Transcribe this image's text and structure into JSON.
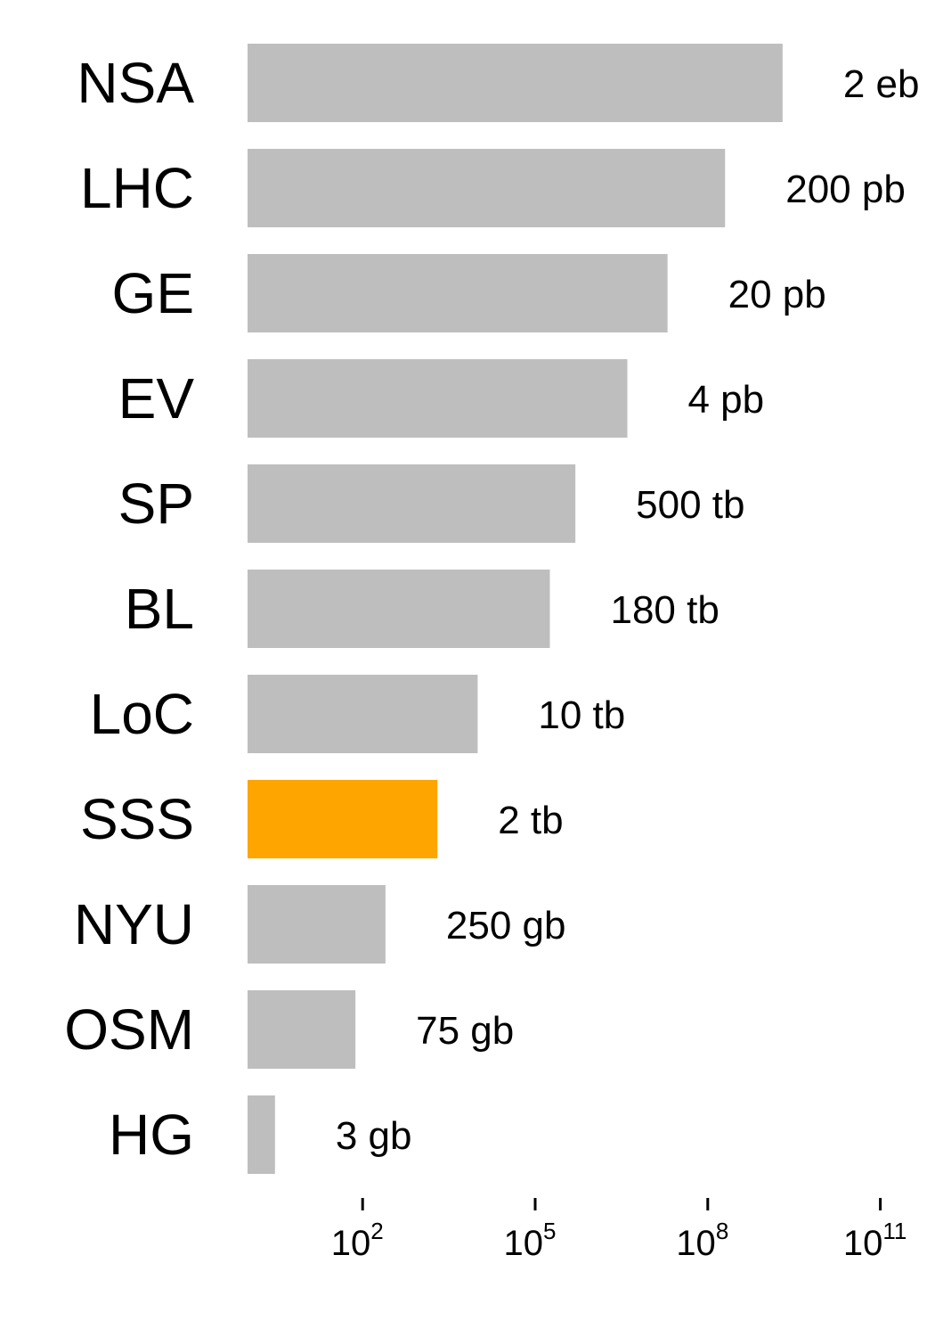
{
  "chart_data": {
    "type": "bar",
    "orientation": "horizontal",
    "x_scale": "log10",
    "x_unit": "gb",
    "categories": [
      "NSA",
      "LHC",
      "GE",
      "EV",
      "SP",
      "BL",
      "LoC",
      "SSS",
      "NYU",
      "OSM",
      "HG"
    ],
    "values": [
      2000000000,
      200000000,
      20000000,
      4000000,
      500000,
      180000,
      10000,
      2000,
      250,
      75,
      3
    ],
    "value_labels": [
      "2 eb",
      "200 pb",
      "20 pb",
      "4 pb",
      "500 tb",
      "180 tb",
      "10 tb",
      "2 tb",
      "250 gb",
      "75 gb",
      "3 gb"
    ],
    "highlight": "SSS",
    "colors": {
      "bar": "#bebebe",
      "highlight": "#ffa500"
    },
    "x_ticks": [
      {
        "value": 100,
        "base": "10",
        "exp": "2"
      },
      {
        "value": 100000,
        "base": "10",
        "exp": "5"
      },
      {
        "value": 100000000,
        "base": "10",
        "exp": "8"
      },
      {
        "value": 100000000000,
        "base": "10",
        "exp": "11"
      }
    ],
    "title": "",
    "xlabel": "",
    "ylabel": "",
    "grid": false,
    "legend": "none"
  }
}
